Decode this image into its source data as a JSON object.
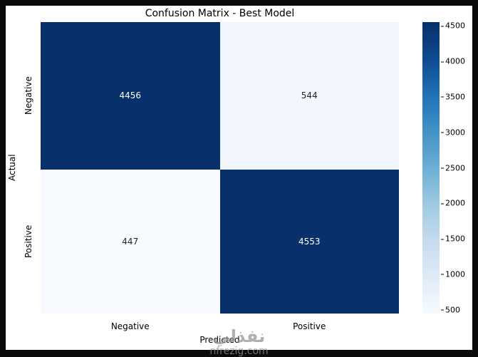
{
  "title": "Confusion Matrix - Best Model",
  "chart_data": {
    "type": "heatmap",
    "title": "Confusion Matrix - Best Model",
    "xlabel": "Predicted",
    "ylabel": "Actual",
    "x_ticklabels": [
      "Negative",
      "Positive"
    ],
    "y_ticklabels": [
      "Negative",
      "Positive"
    ],
    "rows": [
      "Negative",
      "Positive"
    ],
    "columns": [
      "Negative",
      "Positive"
    ],
    "values": [
      [
        4456,
        544
      ],
      [
        447,
        4553
      ]
    ],
    "cell_colors": [
      [
        "#08306b",
        "#f0f6fc"
      ],
      [
        "#f7fbff",
        "#08306b"
      ]
    ],
    "cell_text_colors": [
      [
        "#ffffff",
        "#262626"
      ],
      [
        "#262626",
        "#ffffff"
      ]
    ],
    "colormap": "Blues",
    "legend_position": "right",
    "grid": false,
    "colorbar": {
      "vmin": 447,
      "vmax": 4553,
      "ticks": [
        500,
        1000,
        1500,
        2000,
        2500,
        3000,
        3500,
        4000,
        4500
      ],
      "gradient_stops": [
        "#08306b",
        "#0d4a8f",
        "#2171b5",
        "#4292c6",
        "#6baed6",
        "#9ecae1",
        "#c6dbef",
        "#deebf7",
        "#f7fbff"
      ]
    }
  },
  "watermark": {
    "line1": "نفذلي",
    "line2": "nfrezig.com"
  }
}
